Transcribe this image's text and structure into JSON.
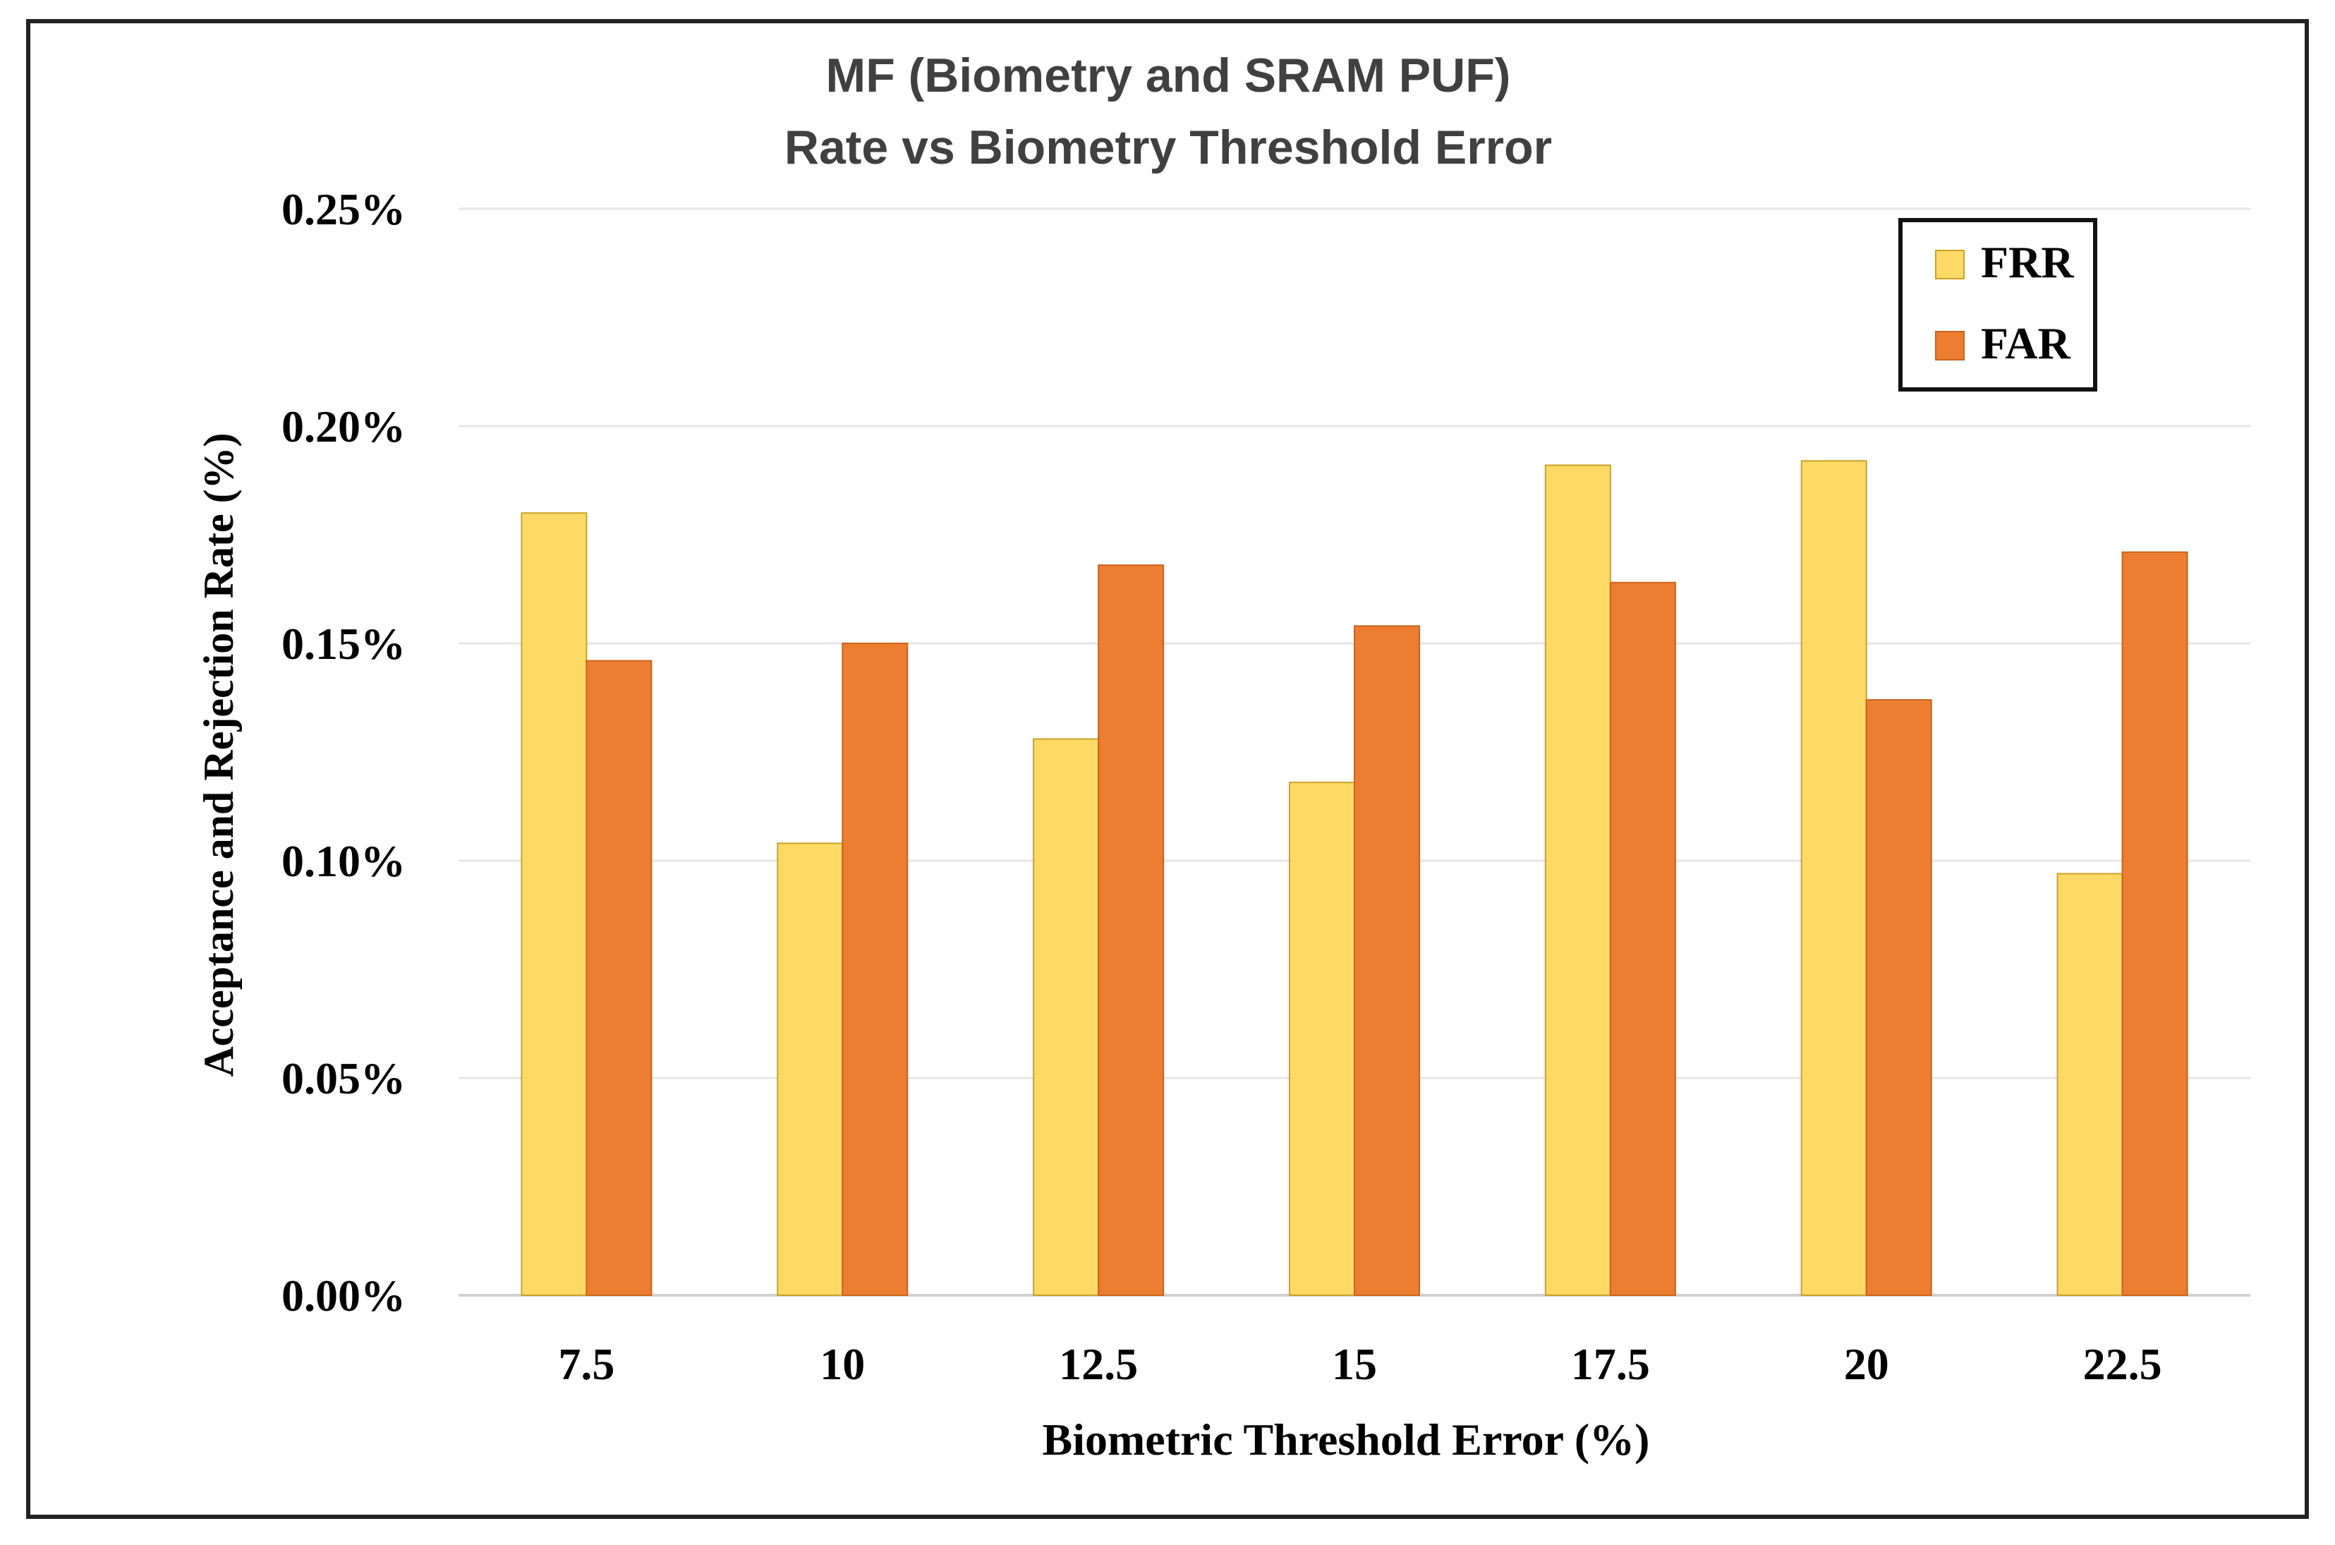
{
  "chart_data": {
    "type": "bar",
    "title_lines": [
      "MF (Biometry and SRAM PUF)",
      "Rate vs Biometry Threshold Error"
    ],
    "xlabel": "Biometric Threshold Error (%)",
    "ylabel": "Acceptance and Rejection Rate (%)",
    "categories": [
      "7.5",
      "10",
      "12.5",
      "15",
      "17.5",
      "20",
      "22.5"
    ],
    "series": [
      {
        "name": "FRR",
        "color": "#FFD966",
        "values": [
          0.18,
          0.104,
          0.128,
          0.118,
          0.191,
          0.192,
          0.097
        ]
      },
      {
        "name": "FAR",
        "color": "#ED7D31",
        "values": [
          0.146,
          0.15,
          0.168,
          0.154,
          0.164,
          0.137,
          0.171
        ]
      }
    ],
    "ylim": [
      0,
      0.25
    ],
    "yticks": [
      0,
      0.05,
      0.1,
      0.15,
      0.2,
      0.25
    ],
    "ytick_labels": [
      "0.00%",
      "0.05%",
      "0.10%",
      "0.15%",
      "0.20%",
      "0.25%"
    ],
    "grid": true,
    "legend_position": "top-right"
  }
}
